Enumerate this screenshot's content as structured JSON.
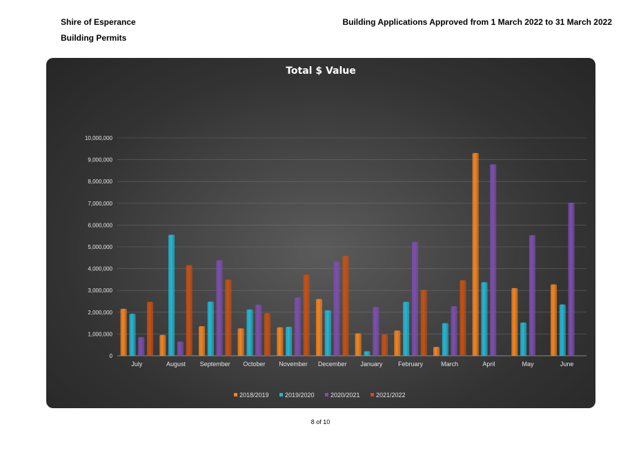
{
  "header": {
    "organisation": "Shire of Esperance",
    "department": "Building Permits",
    "report_title": "Building Applications  Approved from 1 March 2022 to 31 March 2022"
  },
  "footer": {
    "page": "8 of 10"
  },
  "colors": {
    "2018/2019": "#f5841f",
    "2019/2020": "#22b8d4",
    "2020/2021": "#7d4eb0",
    "2021/2022": "#c85012"
  },
  "chart_data": {
    "type": "bar",
    "title": "Total $ Value",
    "categories": [
      "July",
      "August",
      "September",
      "October",
      "November",
      "December",
      "January",
      "February",
      "March",
      "April",
      "May",
      "June"
    ],
    "series": [
      {
        "name": "2018/2019",
        "values": [
          2150000,
          950000,
          1350000,
          1250000,
          1300000,
          2600000,
          1020000,
          1150000,
          400000,
          9300000,
          3100000,
          3270000
        ]
      },
      {
        "name": "2019/2020",
        "values": [
          1920000,
          5550000,
          2480000,
          2120000,
          1320000,
          2080000,
          200000,
          2470000,
          1490000,
          3370000,
          1520000,
          2350000
        ]
      },
      {
        "name": "2020/2021",
        "values": [
          850000,
          650000,
          4380000,
          2340000,
          2670000,
          4310000,
          2230000,
          5220000,
          2270000,
          8780000,
          5530000,
          7020000
        ]
      },
      {
        "name": "2021/2022",
        "values": [
          2470000,
          4150000,
          3490000,
          1950000,
          3720000,
          4580000,
          970000,
          3020000,
          3460000,
          null,
          null,
          null
        ]
      }
    ],
    "y_ticks": [
      "0",
      "1,000,000",
      "2,000,000",
      "3,000,000",
      "4,000,000",
      "5,000,000",
      "6,000,000",
      "7,000,000",
      "8,000,000",
      "9,000,000",
      "10,000,000"
    ],
    "ylim": [
      0,
      10000000
    ],
    "grid": true,
    "legend": "bottom"
  }
}
